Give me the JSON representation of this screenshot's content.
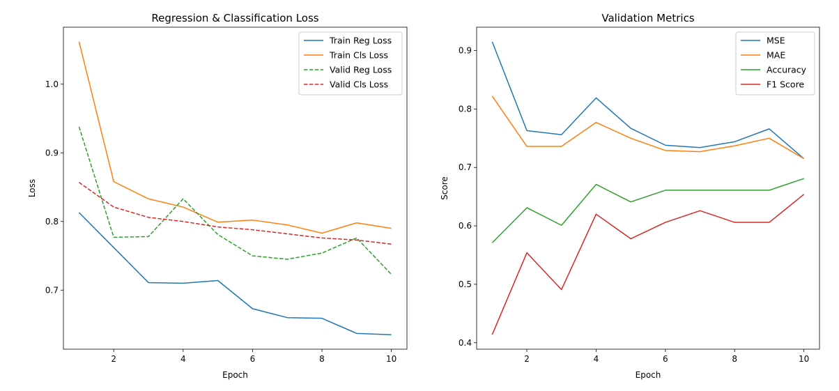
{
  "chart_data": [
    {
      "type": "line",
      "title": "Regression & Classification Loss",
      "xlabel": "Epoch",
      "ylabel": "Loss",
      "xlim": [
        0.55,
        10.45
      ],
      "ylim": [
        0.614,
        1.083
      ],
      "xticks": [
        2,
        4,
        6,
        8,
        10
      ],
      "yticks": [
        0.7,
        0.8,
        0.9,
        1.0
      ],
      "ytick_labels": [
        "0.7",
        "0.8",
        "0.9",
        "1.0"
      ],
      "grid": false,
      "legend": "top-right",
      "x": [
        1,
        2,
        3,
        4,
        5,
        6,
        7,
        8,
        9,
        10
      ],
      "series": [
        {
          "name": "Train Reg Loss",
          "color": "#1f77b4",
          "dash": "solid",
          "values": [
            0.813,
            0.762,
            0.711,
            0.71,
            0.714,
            0.673,
            0.66,
            0.659,
            0.637,
            0.635
          ]
        },
        {
          "name": "Train Cls Loss",
          "color": "#ff7f0e",
          "dash": "solid",
          "values": [
            1.062,
            0.858,
            0.833,
            0.821,
            0.799,
            0.802,
            0.795,
            0.783,
            0.798,
            0.79
          ]
        },
        {
          "name": "Valid Reg Loss",
          "color": "#2ca02c",
          "dash": "dashed",
          "values": [
            0.938,
            0.777,
            0.778,
            0.833,
            0.781,
            0.75,
            0.745,
            0.754,
            0.776,
            0.723
          ]
        },
        {
          "name": "Valid Cls Loss",
          "color": "#d62728",
          "dash": "dashed",
          "values": [
            0.857,
            0.821,
            0.806,
            0.8,
            0.792,
            0.788,
            0.782,
            0.776,
            0.773,
            0.767
          ]
        }
      ]
    },
    {
      "type": "line",
      "title": "Validation Metrics",
      "xlabel": "Epoch",
      "ylabel": "Score",
      "xlim": [
        0.55,
        10.45
      ],
      "ylim": [
        0.389,
        0.94
      ],
      "xticks": [
        2,
        4,
        6,
        8,
        10
      ],
      "yticks": [
        0.4,
        0.5,
        0.6,
        0.7,
        0.8,
        0.9
      ],
      "ytick_labels": [
        "0.4",
        "0.5",
        "0.6",
        "0.7",
        "0.8",
        "0.9"
      ],
      "grid": false,
      "legend": "top-right",
      "x": [
        1,
        2,
        3,
        4,
        5,
        6,
        7,
        8,
        9,
        10
      ],
      "series": [
        {
          "name": "MSE",
          "color": "#1f77b4",
          "dash": "solid",
          "values": [
            0.915,
            0.763,
            0.756,
            0.819,
            0.767,
            0.738,
            0.734,
            0.744,
            0.766,
            0.715
          ]
        },
        {
          "name": "MAE",
          "color": "#ff7f0e",
          "dash": "solid",
          "values": [
            0.822,
            0.736,
            0.736,
            0.777,
            0.75,
            0.729,
            0.727,
            0.737,
            0.75,
            0.715
          ]
        },
        {
          "name": "Accuracy",
          "color": "#2ca02c",
          "dash": "solid",
          "values": [
            0.571,
            0.631,
            0.601,
            0.671,
            0.641,
            0.661,
            0.661,
            0.661,
            0.661,
            0.681
          ]
        },
        {
          "name": "F1 Score",
          "color": "#d62728",
          "dash": "solid",
          "values": [
            0.414,
            0.554,
            0.491,
            0.62,
            0.578,
            0.606,
            0.626,
            0.606,
            0.606,
            0.654
          ]
        }
      ]
    }
  ]
}
